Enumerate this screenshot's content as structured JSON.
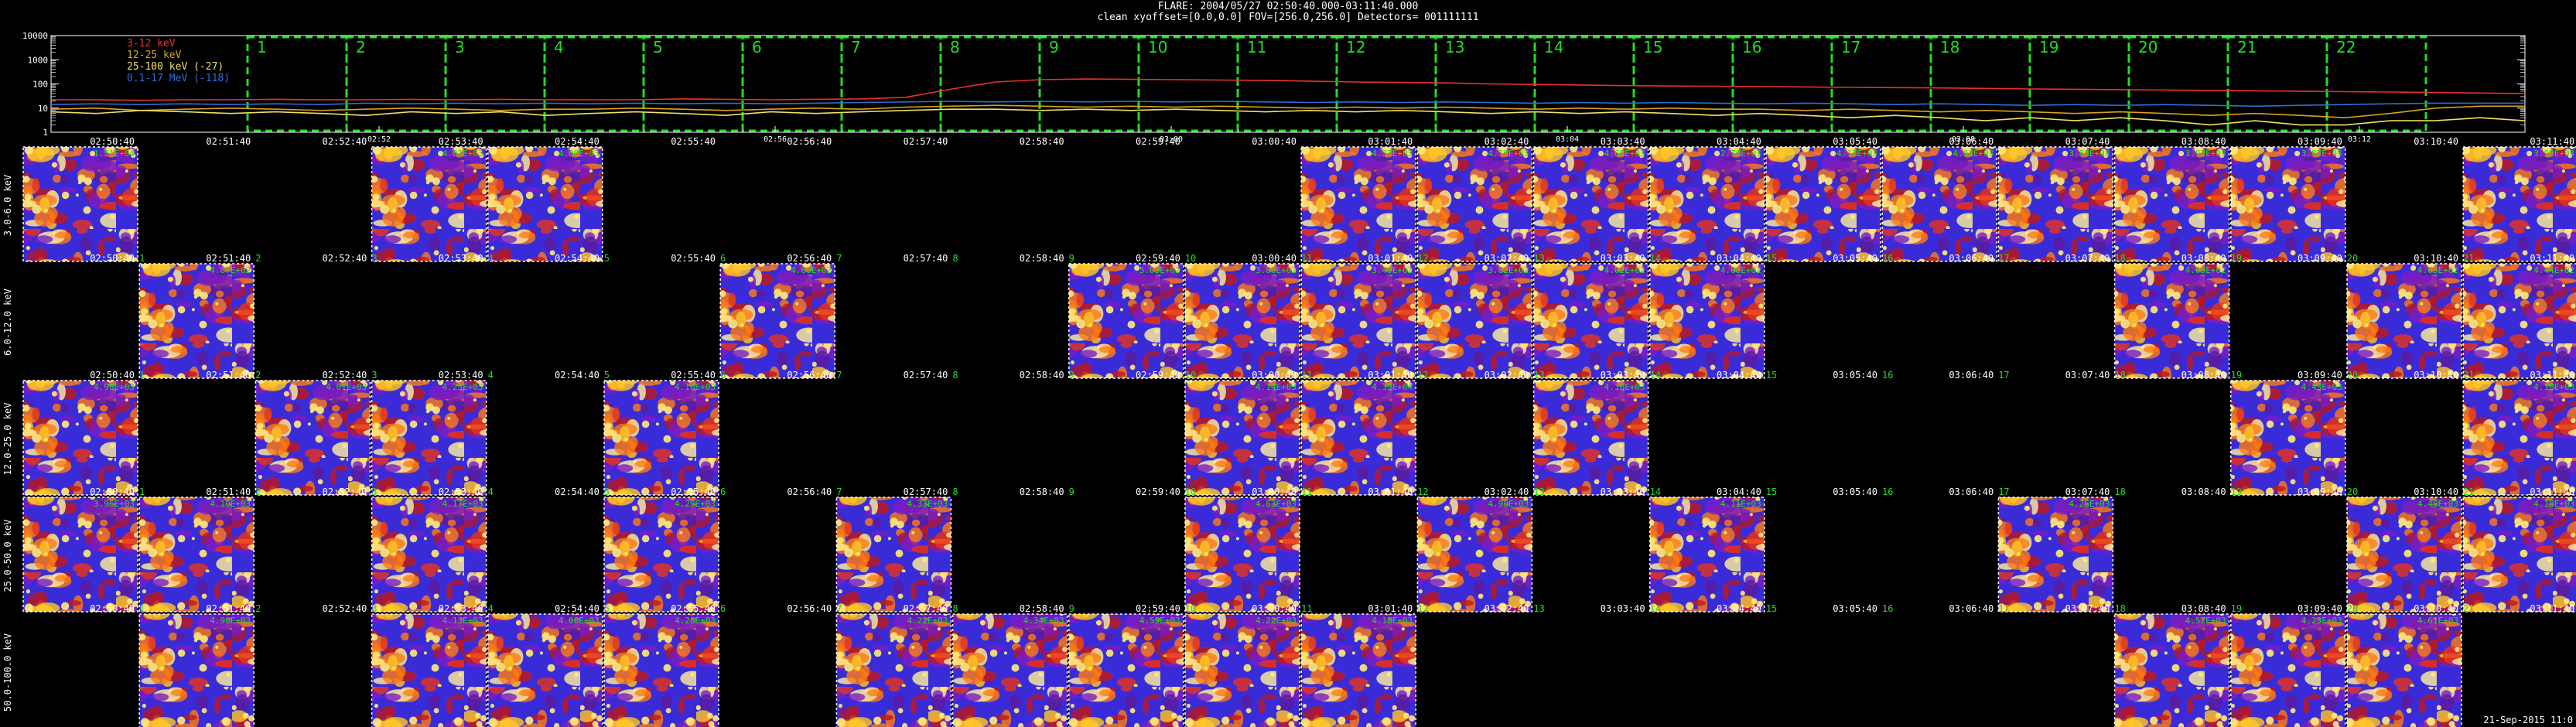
{
  "header": {
    "line1": "FLARE: 2004/05/27 02:50:40.000-03:11:40.000",
    "line2": "clean    xyoffset=[0.0,0.0]    FOV=[256.0,256.0]    Detectors= 001111111"
  },
  "chart_data": [
    {
      "type": "line",
      "title": "",
      "yscale": "log",
      "ylim": [
        1,
        10000
      ],
      "y_ticks": [
        "10000",
        "1000",
        "100",
        "10",
        "1"
      ],
      "x_ticks": [
        "02:52",
        "02:56",
        "03:00",
        "03:04",
        "03:08",
        "03:12"
      ],
      "legend_placement": "top-left",
      "series": [
        {
          "name": "3-12 keV",
          "color": "#e8322b",
          "values": [
            22,
            22,
            21,
            22,
            22,
            23,
            22,
            22,
            23,
            22,
            23,
            22,
            22,
            22,
            24,
            23,
            22,
            23,
            24,
            28,
            60,
            120,
            150,
            160,
            155,
            150,
            145,
            140,
            130,
            120,
            115,
            110,
            100,
            95,
            90,
            85,
            82,
            80,
            78,
            75,
            72,
            70,
            68,
            65,
            62,
            60,
            58,
            56,
            54,
            52,
            50,
            48,
            46,
            44,
            42,
            40
          ]
        },
        {
          "name": "12-25 keV",
          "color": "#d9a31d",
          "values": [
            9,
            10,
            8,
            9,
            10,
            9,
            8,
            9,
            10,
            9,
            8,
            9,
            9,
            10,
            9,
            8,
            9,
            10,
            9,
            11,
            12,
            13,
            12,
            11,
            12,
            11,
            12,
            11,
            10,
            11,
            10,
            11,
            10,
            9,
            10,
            9,
            10,
            9,
            9,
            8,
            9,
            8,
            7,
            8,
            7,
            6,
            7,
            6,
            5,
            6,
            5,
            4,
            6,
            10,
            12,
            12
          ]
        },
        {
          "name": "25-100 keV (-27)",
          "color": "#f0e060",
          "values": [
            7,
            6,
            8,
            7,
            6,
            7,
            6,
            5,
            7,
            6,
            7,
            5,
            6,
            7,
            6,
            5,
            7,
            6,
            7,
            8,
            9,
            9,
            8,
            9,
            8,
            9,
            8,
            7,
            8,
            7,
            8,
            7,
            6,
            7,
            6,
            7,
            6,
            5,
            6,
            5,
            4,
            5,
            4,
            3,
            4,
            3,
            4,
            3,
            2,
            3,
            2,
            2,
            3,
            3,
            4,
            3
          ]
        },
        {
          "name": "0.1-17 MeV (-118)",
          "color": "#2b6fd6",
          "values": [
            14,
            15,
            14,
            15,
            14,
            15,
            14,
            16,
            15,
            16,
            15,
            16,
            15,
            16,
            15,
            16,
            15,
            16,
            17,
            18,
            19,
            18,
            19,
            18,
            19,
            18,
            19,
            18,
            17,
            18,
            17,
            18,
            17,
            16,
            17,
            16,
            17,
            16,
            15,
            16,
            15,
            14,
            15,
            14,
            13,
            14,
            13,
            14,
            13,
            12,
            13,
            14,
            15,
            16,
            16,
            16
          ]
        }
      ],
      "panel_numbers": [
        "1",
        "2",
        "3",
        "4",
        "5",
        "6",
        "7",
        "8",
        "9",
        "10",
        "11",
        "12",
        "13",
        "14",
        "15",
        "16",
        "17",
        "18",
        "19",
        "20",
        "21",
        "22"
      ]
    },
    {
      "type": "heatmap",
      "rows": [
        "3.0-6.0 keV",
        "6.0-12.0 keV",
        "12.0-25.0 keV",
        "25.0-50.0 keV",
        "50.0-100.0 keV"
      ],
      "time_labels": [
        "02:50:40",
        "02:51:40",
        "02:52:40",
        "02:53:40",
        "02:54:40",
        "02:55:40",
        "02:56:40",
        "02:57:40",
        "02:58:40",
        "02:59:40",
        "03:00:40",
        "03:01:40",
        "03:02:40",
        "03:03:40",
        "03:04:40",
        "03:05:40",
        "03:06:40",
        "03:07:40",
        "03:08:40",
        "03:09:40",
        "03:10:40",
        "03:11:40"
      ],
      "columns": [
        "1",
        "2",
        "3",
        "4",
        "5",
        "6",
        "7",
        "8",
        "9",
        "10",
        "11",
        "12",
        "13",
        "14",
        "15",
        "16",
        "17",
        "18",
        "19",
        "20",
        "21",
        "22"
      ],
      "presence": [
        [
          1,
          0,
          0,
          1,
          1,
          0,
          0,
          0,
          0,
          0,
          0,
          1,
          1,
          1,
          1,
          1,
          1,
          1,
          1,
          1,
          0,
          1
        ],
        [
          0,
          1,
          0,
          0,
          0,
          0,
          1,
          0,
          0,
          1,
          1,
          1,
          1,
          1,
          1,
          0,
          0,
          0,
          1,
          0,
          1,
          1
        ],
        [
          1,
          0,
          1,
          1,
          0,
          1,
          0,
          0,
          0,
          0,
          1,
          1,
          0,
          1,
          0,
          0,
          0,
          0,
          0,
          1,
          0,
          1
        ],
        [
          1,
          1,
          0,
          1,
          0,
          1,
          0,
          1,
          0,
          0,
          1,
          0,
          1,
          0,
          1,
          0,
          0,
          1,
          0,
          0,
          1,
          1
        ],
        [
          0,
          1,
          0,
          1,
          1,
          1,
          0,
          1,
          1,
          1,
          1,
          1,
          0,
          0,
          0,
          0,
          0,
          0,
          1,
          1,
          1,
          0
        ]
      ],
      "peak_labels": [
        [
          "1.51E+04",
          "",
          "",
          "4.01E+03",
          "4.00E+03",
          "",
          "",
          "",
          "",
          "",
          "",
          "4.32E+03",
          "4.19E+03",
          "4.60E+03",
          "2.76E+03",
          "4.17E+03",
          "4.01E+03",
          "3.88E+03",
          "3.92E+03",
          "3.87E+03",
          "",
          "3.99E+03"
        ],
        [
          "",
          "4.87E+02",
          "",
          "",
          "",
          "",
          "4.60E+02",
          "",
          "",
          "5.03E+02",
          "3.86E+02",
          "3.49E+02",
          "3.82E+02",
          "4.02E+02",
          "4.08E+02",
          "",
          "",
          "",
          "4.09E+02",
          "",
          "4.63E+02",
          "4.44E+02"
        ],
        [
          "4.98E+03",
          "",
          "4.01E+03",
          "4.23E+03",
          "",
          "4.10E+03",
          "",
          "",
          "",
          "",
          "4.14E+03",
          "4.39E+04",
          "",
          "4.16E+03",
          "",
          "",
          "",
          "",
          "",
          "4.43E+03",
          "",
          "4.18E+03"
        ],
        [
          "3.96E+03",
          "4.10E+03",
          "",
          "4.17E+03",
          "",
          "4.29E+03",
          "",
          "4.33E+03",
          "",
          "",
          "4.63E+03",
          "",
          "4.90E+03",
          "",
          "4.11E+03",
          "",
          "",
          "4.26E+03",
          "",
          "",
          "4.48E+03",
          "4.18E+03"
        ],
        [
          "",
          "4.96E+03",
          "",
          "4.13E+03",
          "4.06E+03",
          "4.28E+03",
          "",
          "4.22E+03",
          "4.34E+03",
          "4.59E+03",
          "4.22E+03",
          "4.18E+03",
          "",
          "",
          "",
          "",
          "",
          "",
          "4.57E+03",
          "4.23E+03",
          "4.61E+03",
          ""
        ]
      ]
    }
  ],
  "footer": {
    "datestamp": "21-Sep-2015 11:0"
  }
}
